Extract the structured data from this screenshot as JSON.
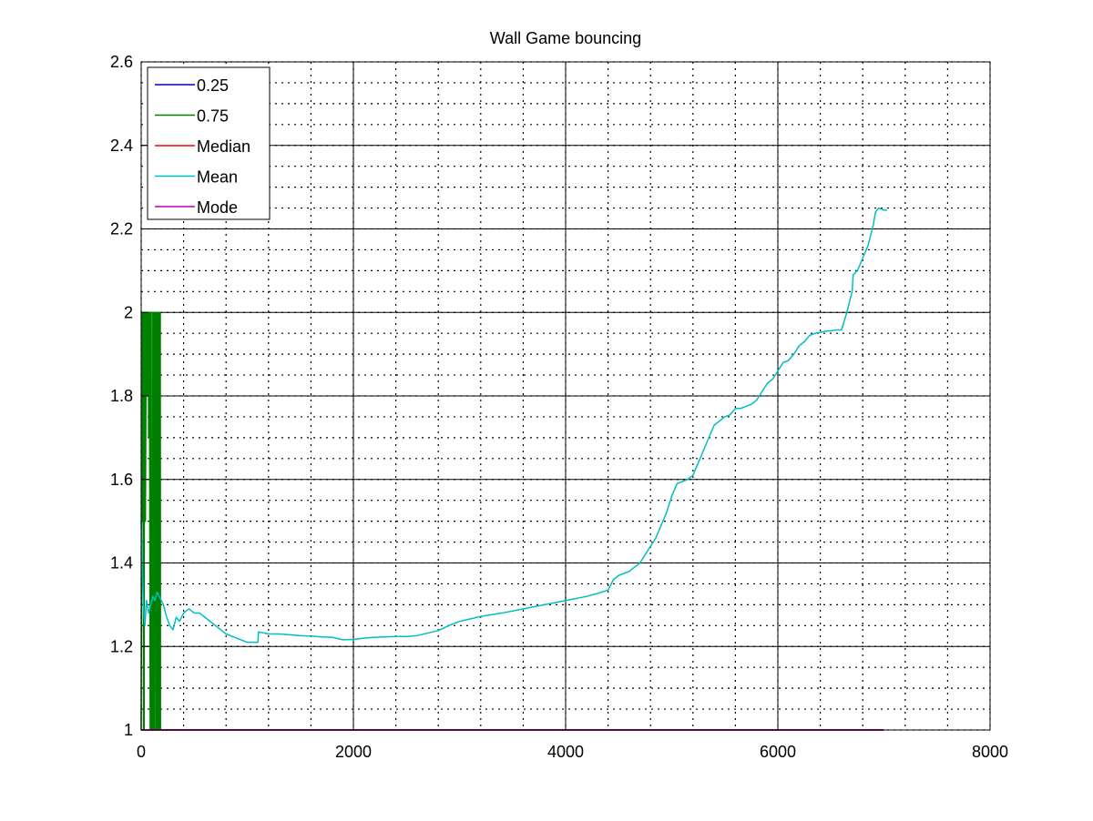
{
  "chart_data": {
    "type": "line",
    "title": "Wall Game bouncing",
    "xlabel": "",
    "ylabel": "",
    "xlim": [
      0,
      8000
    ],
    "ylim": [
      1,
      2.6
    ],
    "x_ticks": [
      0,
      2000,
      4000,
      6000,
      8000
    ],
    "y_ticks": [
      1,
      1.2,
      1.4,
      1.6,
      1.8,
      2,
      2.2,
      2.4,
      2.6
    ],
    "x_tick_labels": [
      "0",
      "2000",
      "4000",
      "6000",
      "8000"
    ],
    "y_tick_labels": [
      "1",
      "1.2",
      "1.4",
      "1.6",
      "1.8",
      "2",
      "2.2",
      "2.4",
      "2.6"
    ],
    "grid": true,
    "minor_grid": true,
    "legend_position": "top-left",
    "series": [
      {
        "name": "0.25",
        "color": "#0000cc",
        "x": [
          0,
          7000
        ],
        "y": [
          1,
          1
        ]
      },
      {
        "name": "0.75",
        "color": "#008000",
        "x": [
          0,
          5,
          8,
          12,
          15,
          20,
          22,
          28,
          30,
          38,
          40,
          48,
          50,
          58,
          60,
          68,
          70,
          76,
          78,
          85,
          88,
          95,
          98,
          108,
          110,
          118,
          120,
          128,
          130,
          140,
          142,
          150,
          152,
          160,
          162,
          170,
          172,
          180,
          182,
          190,
          192,
          7000
        ],
        "y": [
          1,
          1.5,
          2,
          1.5,
          2,
          2,
          1,
          1,
          2,
          2,
          1.5,
          2,
          2,
          1.8,
          2,
          2,
          1.7,
          2,
          2,
          1,
          2,
          2,
          1,
          1,
          2,
          2,
          1,
          1,
          2,
          2,
          1,
          1,
          2,
          2,
          1,
          1,
          2,
          2,
          1,
          1,
          1,
          1
        ]
      },
      {
        "name": "Median",
        "color": "#ff0000",
        "x": [
          0,
          7000
        ],
        "y": [
          1,
          1
        ]
      },
      {
        "name": "Mean",
        "color": "#00bfbf",
        "x": [
          0,
          10,
          20,
          35,
          50,
          70,
          90,
          110,
          130,
          150,
          170,
          190,
          210,
          240,
          270,
          300,
          330,
          360,
          400,
          450,
          500,
          550,
          600,
          700,
          800,
          900,
          1000,
          1100,
          1105,
          1200,
          1300,
          1400,
          1500,
          1600,
          1700,
          1800,
          1900,
          2000,
          2100,
          2200,
          2300,
          2400,
          2500,
          2600,
          2700,
          2800,
          2900,
          3000,
          3100,
          3200,
          3300,
          3400,
          3500,
          3600,
          3700,
          3800,
          3900,
          4000,
          4100,
          4200,
          4300,
          4400,
          4450,
          4500,
          4600,
          4700,
          4750,
          4800,
          4850,
          4900,
          4950,
          5000,
          5050,
          5100,
          5150,
          5200,
          5250,
          5300,
          5350,
          5400,
          5450,
          5500,
          5550,
          5600,
          5650,
          5700,
          5750,
          5800,
          5850,
          5900,
          5950,
          6000,
          6050,
          6100,
          6150,
          6200,
          6250,
          6300,
          6350,
          6400,
          6450,
          6500,
          6550,
          6600,
          6650,
          6700,
          6710,
          6750,
          6800,
          6850,
          6880,
          6900,
          6920,
          6950,
          7000,
          7030
        ],
        "y": [
          1.5,
          1.4,
          1.3,
          1.25,
          1.31,
          1.28,
          1.3,
          1.32,
          1.31,
          1.33,
          1.32,
          1.31,
          1.3,
          1.27,
          1.25,
          1.24,
          1.27,
          1.26,
          1.28,
          1.29,
          1.28,
          1.28,
          1.27,
          1.25,
          1.23,
          1.22,
          1.21,
          1.21,
          1.235,
          1.23,
          1.23,
          1.228,
          1.226,
          1.225,
          1.223,
          1.222,
          1.216,
          1.217,
          1.22,
          1.222,
          1.223,
          1.224,
          1.224,
          1.226,
          1.232,
          1.238,
          1.25,
          1.26,
          1.266,
          1.272,
          1.276,
          1.28,
          1.285,
          1.29,
          1.295,
          1.3,
          1.305,
          1.31,
          1.315,
          1.32,
          1.327,
          1.335,
          1.36,
          1.37,
          1.38,
          1.4,
          1.42,
          1.44,
          1.46,
          1.49,
          1.52,
          1.56,
          1.59,
          1.595,
          1.6,
          1.61,
          1.64,
          1.67,
          1.7,
          1.73,
          1.74,
          1.75,
          1.755,
          1.77,
          1.77,
          1.775,
          1.78,
          1.79,
          1.81,
          1.83,
          1.84,
          1.86,
          1.88,
          1.885,
          1.9,
          1.92,
          1.93,
          1.945,
          1.95,
          1.952,
          1.955,
          1.956,
          1.958,
          1.958,
          2.0,
          2.05,
          2.09,
          2.1,
          2.13,
          2.16,
          2.19,
          2.21,
          2.24,
          2.25,
          2.245,
          2.245
        ]
      },
      {
        "name": "Mode",
        "color": "#bf00bf",
        "x": [
          0,
          7000
        ],
        "y": [
          1,
          1
        ]
      }
    ]
  }
}
